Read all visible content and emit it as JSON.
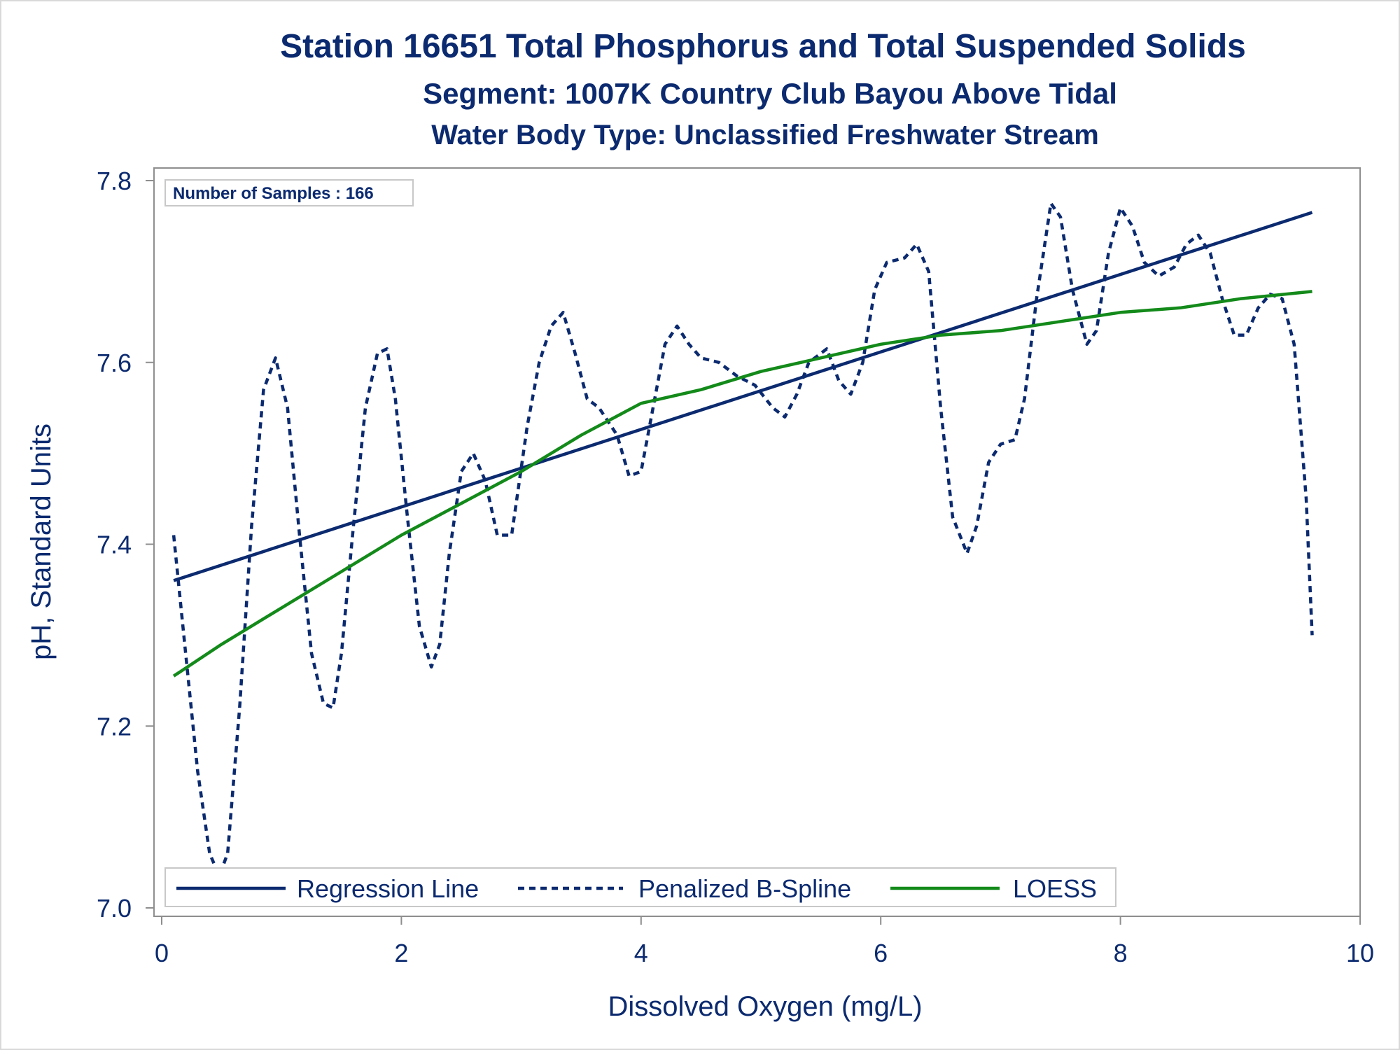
{
  "chart_data": {
    "type": "line",
    "title": "Station 16651  Total Phosphorus and Total Suspended Solids",
    "subtitle": "Segment: 1007K  Country Club Bayou Above Tidal",
    "subtitle2": "Water Body Type: Unclassified Freshwater Stream",
    "xlabel": "Dissolved Oxygen (mg/L)",
    "ylabel": "pH, Standard Units",
    "xlim": [
      0,
      10
    ],
    "ylim": [
      7.0,
      7.8
    ],
    "x_ticks": [
      "0",
      "2",
      "4",
      "6",
      "8",
      "10"
    ],
    "y_ticks": [
      "7.0",
      "7.2",
      "7.4",
      "7.6",
      "7.8"
    ],
    "grid": false,
    "legend_position": "bottom-inside",
    "inset_text": "Number of Samples : 166",
    "series": [
      {
        "name": "Regression Line",
        "style": "solid",
        "color": "#0b2a6f",
        "x": [
          0.1,
          9.6
        ],
        "y": [
          7.36,
          7.765
        ]
      },
      {
        "name": "Penalized B-Spline",
        "style": "dashed",
        "color": "#0b2a6f",
        "x": [
          0.1,
          0.2,
          0.3,
          0.4,
          0.48,
          0.55,
          0.65,
          0.75,
          0.85,
          0.95,
          1.05,
          1.15,
          1.25,
          1.35,
          1.43,
          1.5,
          1.6,
          1.7,
          1.8,
          1.88,
          1.95,
          2.05,
          2.15,
          2.25,
          2.32,
          2.4,
          2.5,
          2.6,
          2.7,
          2.8,
          2.92,
          3.05,
          3.15,
          3.25,
          3.35,
          3.45,
          3.55,
          3.65,
          3.8,
          3.9,
          4.0,
          4.1,
          4.2,
          4.3,
          4.4,
          4.5,
          4.65,
          4.8,
          4.95,
          5.1,
          5.2,
          5.3,
          5.4,
          5.55,
          5.65,
          5.75,
          5.85,
          5.95,
          6.05,
          6.2,
          6.3,
          6.4,
          6.5,
          6.6,
          6.72,
          6.8,
          6.9,
          7.0,
          7.12,
          7.2,
          7.3,
          7.42,
          7.5,
          7.6,
          7.72,
          7.8,
          7.9,
          8.0,
          8.1,
          8.2,
          8.32,
          8.45,
          8.55,
          8.65,
          8.75,
          8.85,
          8.95,
          9.05,
          9.15,
          9.25,
          9.35,
          9.45,
          9.55,
          9.6
        ],
        "y": [
          7.41,
          7.28,
          7.15,
          7.06,
          7.035,
          7.06,
          7.22,
          7.42,
          7.57,
          7.605,
          7.55,
          7.41,
          7.28,
          7.225,
          7.22,
          7.28,
          7.42,
          7.55,
          7.61,
          7.615,
          7.56,
          7.43,
          7.31,
          7.265,
          7.29,
          7.39,
          7.48,
          7.5,
          7.47,
          7.41,
          7.41,
          7.53,
          7.6,
          7.64,
          7.655,
          7.61,
          7.56,
          7.55,
          7.52,
          7.475,
          7.48,
          7.55,
          7.62,
          7.64,
          7.62,
          7.605,
          7.6,
          7.585,
          7.575,
          7.55,
          7.54,
          7.565,
          7.6,
          7.615,
          7.58,
          7.565,
          7.6,
          7.68,
          7.71,
          7.715,
          7.73,
          7.7,
          7.55,
          7.43,
          7.39,
          7.42,
          7.49,
          7.51,
          7.515,
          7.56,
          7.67,
          7.775,
          7.76,
          7.68,
          7.62,
          7.635,
          7.72,
          7.77,
          7.75,
          7.71,
          7.695,
          7.705,
          7.73,
          7.74,
          7.72,
          7.67,
          7.63,
          7.63,
          7.66,
          7.675,
          7.67,
          7.62,
          7.45,
          7.3
        ]
      },
      {
        "name": "LOESS",
        "style": "solid",
        "color": "#138a1a",
        "x": [
          0.1,
          0.5,
          1.0,
          1.5,
          2.0,
          2.5,
          3.0,
          3.5,
          4.0,
          4.5,
          5.0,
          5.5,
          6.0,
          6.5,
          7.0,
          7.5,
          8.0,
          8.5,
          9.0,
          9.6
        ],
        "y": [
          7.255,
          7.29,
          7.33,
          7.37,
          7.41,
          7.445,
          7.48,
          7.52,
          7.555,
          7.57,
          7.59,
          7.605,
          7.62,
          7.63,
          7.635,
          7.645,
          7.655,
          7.66,
          7.67,
          7.678
        ]
      }
    ]
  }
}
